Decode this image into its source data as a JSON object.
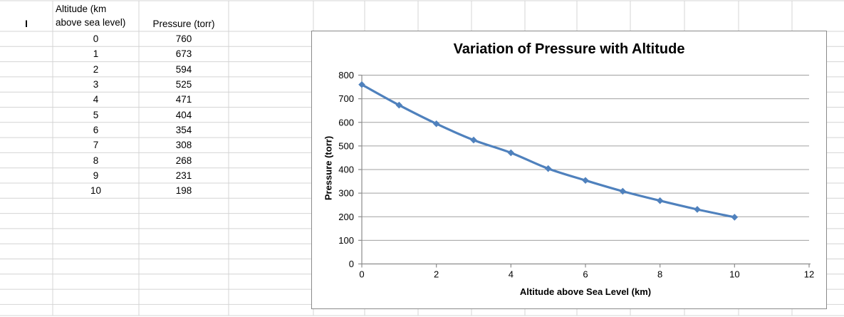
{
  "sheet": {
    "corner_label": "I",
    "table": {
      "headers": [
        "Altitude (km above sea level)",
        "Pressure (torr)"
      ],
      "rows": [
        [
          "0",
          "760"
        ],
        [
          "1",
          "673"
        ],
        [
          "2",
          "594"
        ],
        [
          "3",
          "525"
        ],
        [
          "4",
          "471"
        ],
        [
          "5",
          "404"
        ],
        [
          "6",
          "354"
        ],
        [
          "7",
          "308"
        ],
        [
          "8",
          "268"
        ],
        [
          "9",
          "231"
        ],
        [
          "10",
          "198"
        ]
      ]
    }
  },
  "chart_data": {
    "type": "line",
    "title": "Variation of Pressure with Altitude",
    "xlabel": "Altitude above Sea Level (km)",
    "ylabel": "Pressure (torr)",
    "x": [
      0,
      1,
      2,
      3,
      4,
      5,
      6,
      7,
      8,
      9,
      10
    ],
    "y": [
      760,
      673,
      594,
      525,
      471,
      404,
      354,
      308,
      268,
      231,
      198
    ],
    "xlim": [
      0,
      12
    ],
    "ylim": [
      0,
      800
    ],
    "xticks": [
      0,
      2,
      4,
      6,
      8,
      10,
      12
    ],
    "yticks": [
      0,
      100,
      200,
      300,
      400,
      500,
      600,
      700,
      800
    ],
    "grid": "horizontal-only",
    "legend": "none",
    "marker": "diamond",
    "smooth": true
  },
  "colors": {
    "series": "#4F81BD",
    "chart_gridline": "#A0A0A0",
    "axis_line": "#8C8C8C",
    "chart_border": "#8A8A8A",
    "sheet_gridline": "#D4D4D4",
    "text": "#000000",
    "background": "#FFFFFF"
  }
}
